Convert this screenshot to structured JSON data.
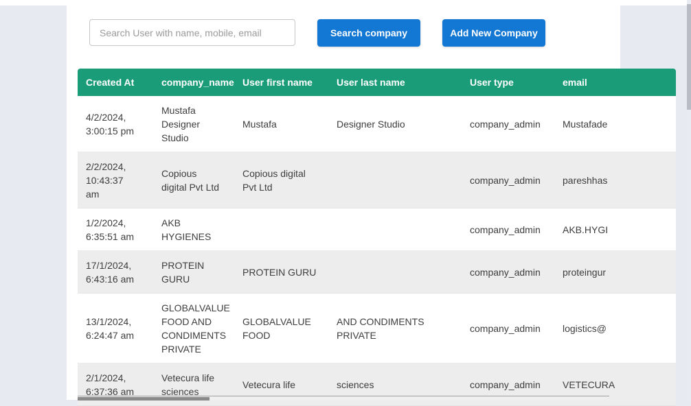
{
  "page": {
    "background_color": "#e8eaf1",
    "card_color": "#ffffff"
  },
  "toolbar": {
    "search_placeholder": "Search User with name, mobile, email",
    "search_value": "",
    "search_company_label": "Search company",
    "add_company_label": "Add New Company",
    "button_color": "#1377d4"
  },
  "table": {
    "header_color": "#1a9c78",
    "stripe_color": "#ededed",
    "columns": [
      "Created At",
      "company_name",
      "User first name",
      "User last name",
      "User type",
      "email"
    ],
    "rows": [
      [
        "4/2/2024, 3:00:15 pm",
        "Mustafa Designer Studio",
        "Mustafa",
        "Designer Studio",
        "company_admin",
        "Mustafade"
      ],
      [
        "2/2/2024, 10:43:37 am",
        "Copious digital Pvt Ltd",
        "Copious digital Pvt Ltd",
        "",
        "company_admin",
        "pareshhas"
      ],
      [
        "1/2/2024, 6:35:51 am",
        "AKB HYGIENES",
        "",
        "",
        "company_admin",
        "AKB.HYGI"
      ],
      [
        "17/1/2024, 6:43:16 am",
        "PROTEIN GURU",
        "PROTEIN GURU",
        "",
        "company_admin",
        "proteingur"
      ],
      [
        "13/1/2024, 6:24:47 am",
        "GLOBALVALUE FOOD AND CONDIMENTS PRIVATE",
        "GLOBALVALUE FOOD",
        "AND CONDIMENTS PRIVATE",
        "company_admin",
        "logistics@"
      ],
      [
        "2/1/2024, 6:37:36 am",
        "Vetecura life sciences",
        "Vetecura life",
        "sciences",
        "company_admin",
        "VETECURA"
      ]
    ]
  }
}
